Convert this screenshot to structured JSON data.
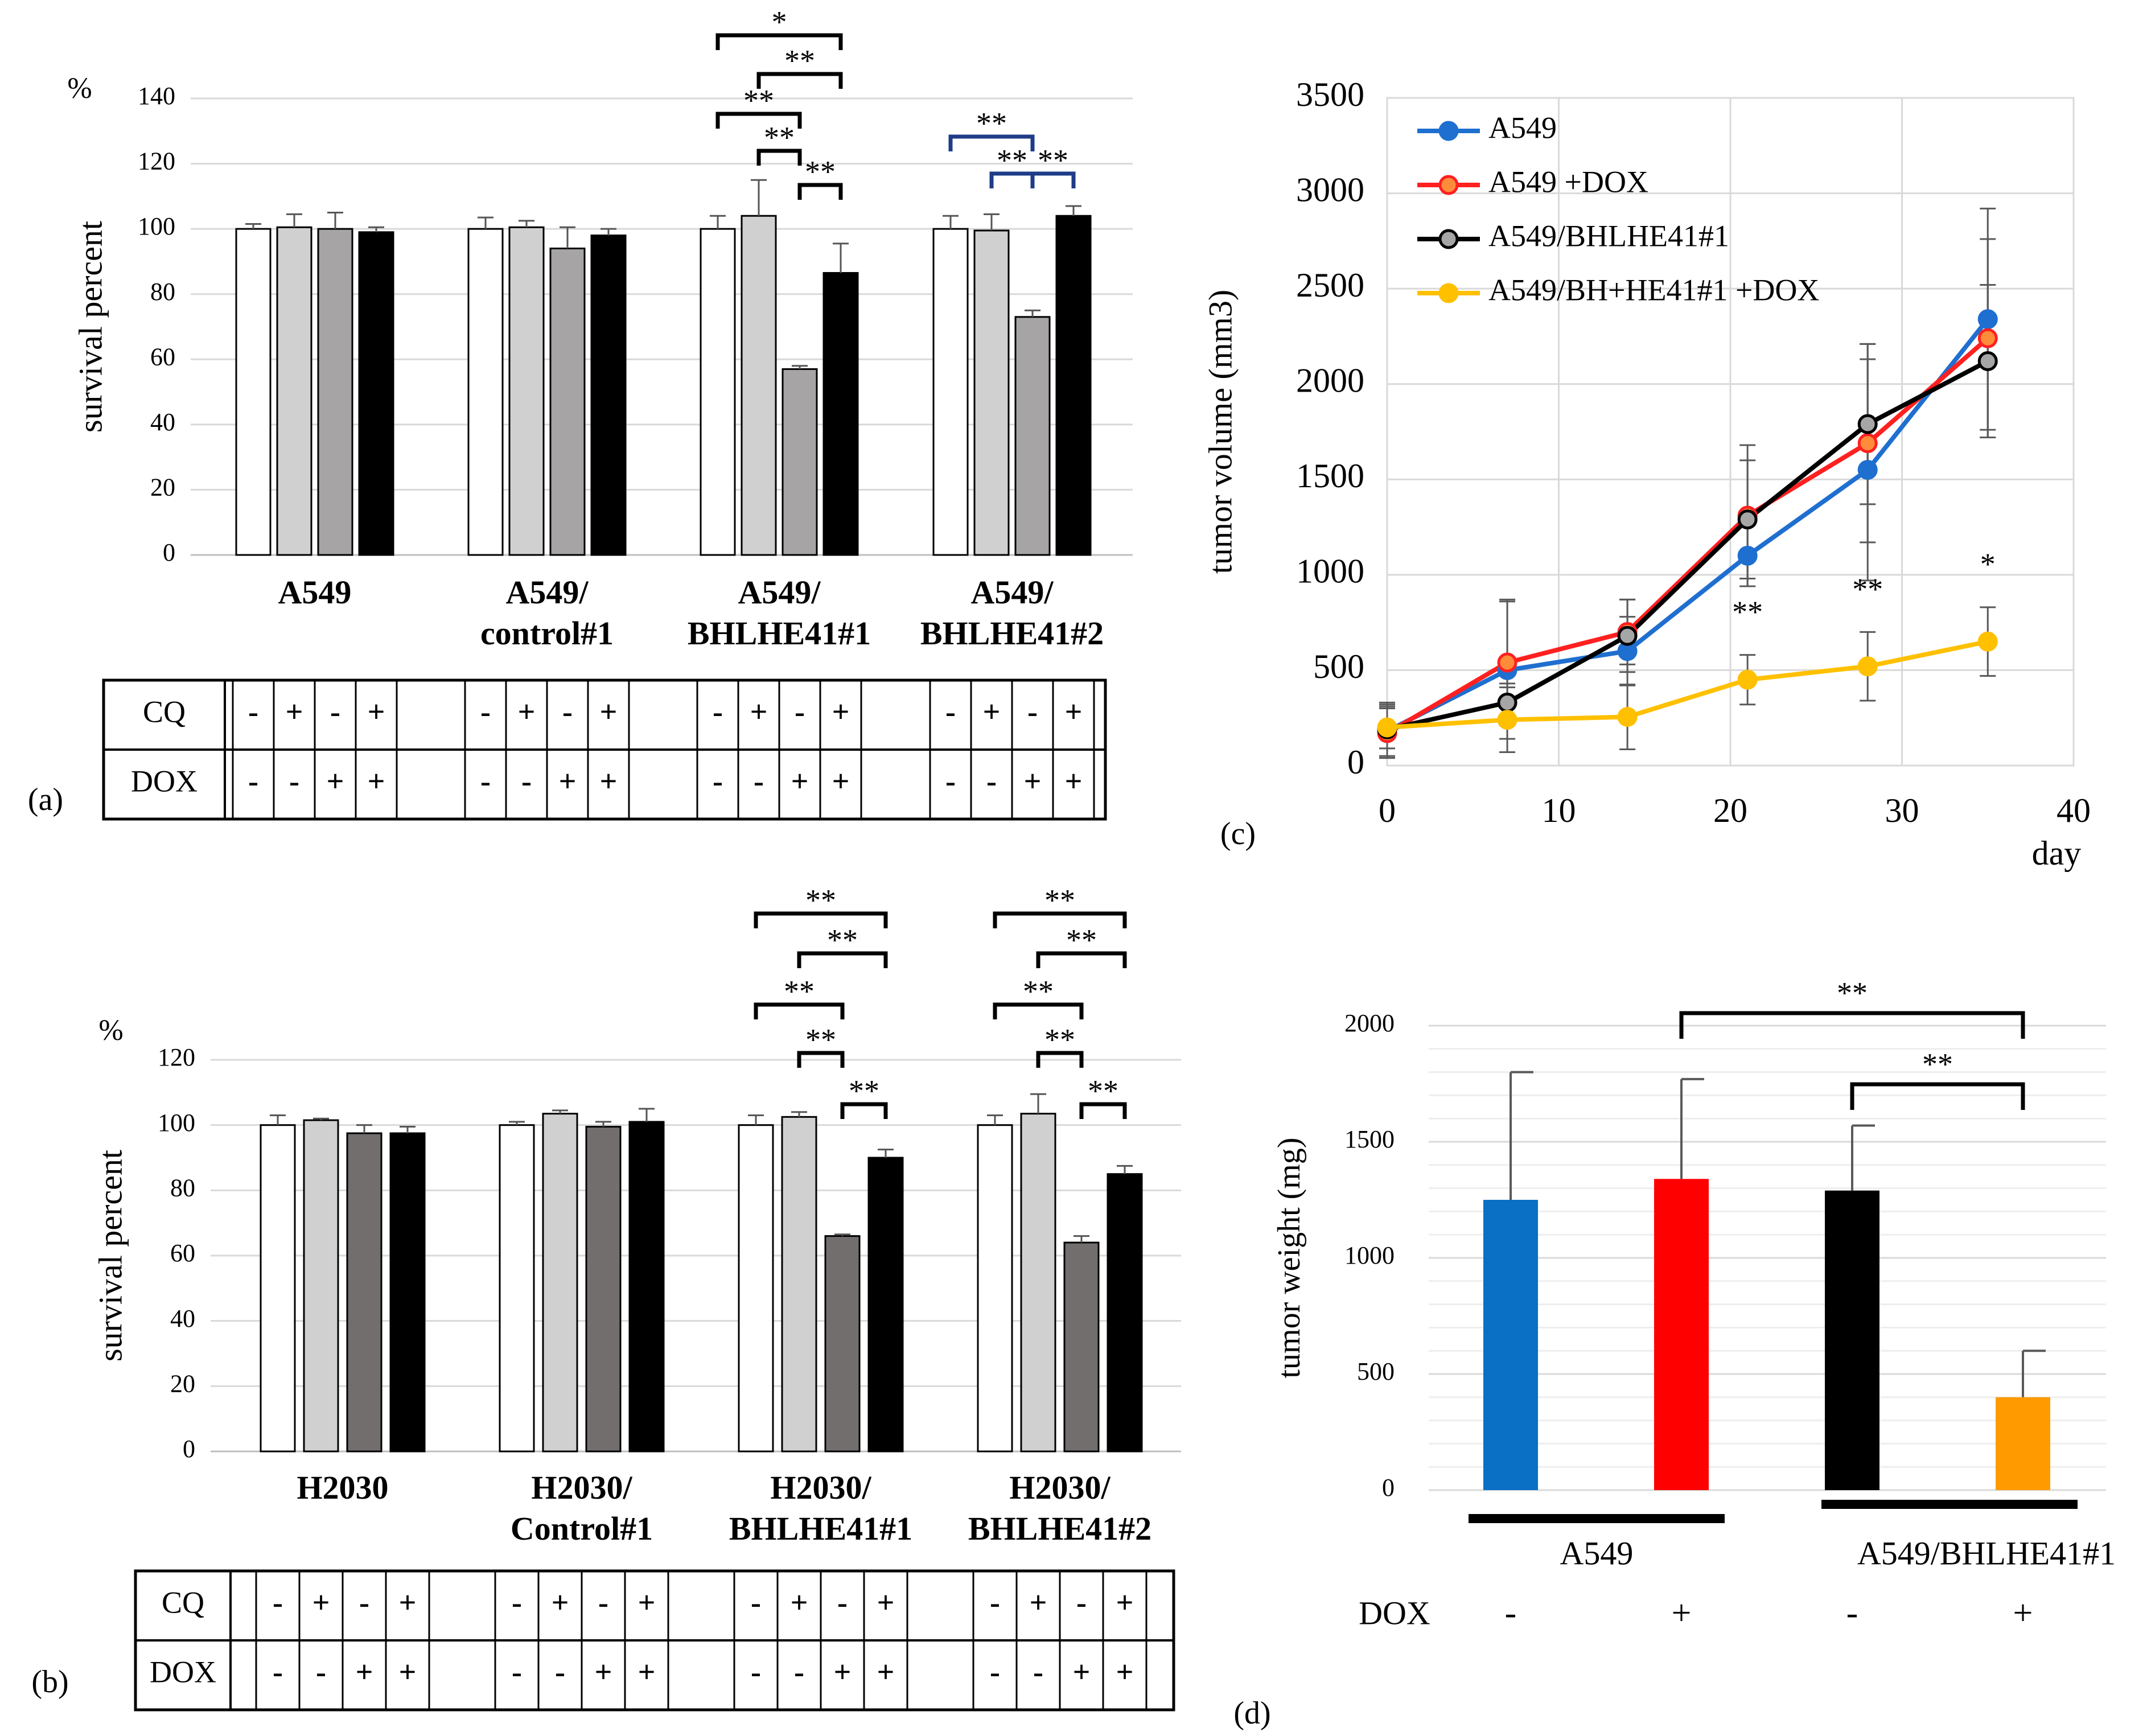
{
  "chart_data": [
    {
      "type": "bar",
      "panel": "(a)",
      "ylabel": "survival percent",
      "yunit": "%",
      "ylim": [
        0,
        140
      ],
      "yticks": [
        "0",
        "20",
        "40",
        "60",
        "80",
        "100",
        "120",
        "140"
      ],
      "grid": true,
      "groups": [
        "A549",
        "A549/\ncontrol#1",
        "A549/\nBHLHE41#1",
        "A549/\nBHLHE41#2"
      ],
      "series": [
        {
          "name": "CQ- DOX-",
          "color": "#ffffff",
          "values": [
            100,
            100,
            100,
            100
          ],
          "errors": [
            1.5,
            3.5,
            4,
            4
          ]
        },
        {
          "name": "CQ+ DOX-",
          "color": "#d0d0d0",
          "values": [
            100.5,
            100.5,
            104,
            99.5
          ],
          "errors": [
            4,
            2,
            11,
            5
          ]
        },
        {
          "name": "CQ- DOX+",
          "color": "#a6a4a4",
          "values": [
            100,
            94,
            57,
            73
          ],
          "errors": [
            5,
            6.5,
            1,
            2
          ]
        },
        {
          "name": "CQ+ DOX+",
          "color": "#000000",
          "values": [
            99,
            98,
            86.5,
            104
          ],
          "errors": [
            1.5,
            2,
            9,
            3
          ]
        }
      ],
      "table": {
        "rows": [
          {
            "label": "CQ",
            "marks": [
              "-",
              "+",
              "-",
              "+",
              "-",
              "+",
              "-",
              "+",
              "-",
              "+",
              "-",
              "+",
              "-",
              "+",
              "-",
              "+"
            ]
          },
          {
            "label": "DOX",
            "marks": [
              "-",
              "-",
              "+",
              "+",
              "-",
              "-",
              "+",
              "+",
              "-",
              "-",
              "+",
              "+",
              "-",
              "-",
              "+",
              "+"
            ]
          }
        ]
      },
      "brackets": [
        {
          "group": 2,
          "from": 0,
          "to": 3,
          "label": "*"
        },
        {
          "group": 2,
          "from": 1,
          "to": 3,
          "label": "**"
        },
        {
          "group": 2,
          "from": 0,
          "to": 2,
          "label": "**"
        },
        {
          "group": 2,
          "from": 1,
          "to": 2,
          "label": "**"
        },
        {
          "group": 2,
          "from": 2,
          "to": 3,
          "label": "**"
        },
        {
          "group": 3,
          "from": 0,
          "to": 2,
          "label": "**",
          "color": "#1f3c88"
        },
        {
          "group": 3,
          "from": 1,
          "to": 2,
          "label": "**",
          "color": "#1f3c88"
        },
        {
          "group": 3,
          "from": 2,
          "to": 3,
          "label": "**",
          "color": "#1f3c88"
        }
      ]
    },
    {
      "type": "bar",
      "panel": "(b)",
      "ylabel": "survival percent",
      "yunit": "%",
      "ylim": [
        0,
        120
      ],
      "yticks": [
        "0",
        "20",
        "40",
        "60",
        "80",
        "100",
        "120"
      ],
      "grid": true,
      "groups": [
        "H2030",
        "H2030/\nControl#1",
        "H2030/\nBHLHE41#1",
        "H2030/\nBHLHE41#2"
      ],
      "series": [
        {
          "name": "CQ- DOX-",
          "color": "#ffffff",
          "values": [
            100,
            100,
            100,
            100
          ],
          "errors": [
            3,
            1,
            3,
            3
          ]
        },
        {
          "name": "CQ+ DOX-",
          "color": "#d0d0d0",
          "values": [
            101.5,
            103.5,
            102.5,
            103.5
          ],
          "errors": [
            0.5,
            1,
            1.5,
            6
          ]
        },
        {
          "name": "CQ- DOX+",
          "color": "#726e6e",
          "values": [
            97.5,
            99.5,
            66,
            64
          ],
          "errors": [
            2.5,
            1.5,
            0.5,
            2
          ]
        },
        {
          "name": "CQ+ DOX+",
          "color": "#000000",
          "values": [
            97.5,
            101,
            90,
            85
          ],
          "errors": [
            2,
            4,
            2.5,
            2.5
          ]
        }
      ],
      "table": {
        "rows": [
          {
            "label": "CQ",
            "marks": [
              "-",
              "+",
              "-",
              "+",
              "-",
              "+",
              "-",
              "+",
              "-",
              "+",
              "-",
              "+",
              "-",
              "+",
              "-",
              "+"
            ]
          },
          {
            "label": "DOX",
            "marks": [
              "-",
              "-",
              "+",
              "+",
              "-",
              "-",
              "+",
              "+",
              "-",
              "-",
              "+",
              "+",
              "-",
              "-",
              "+",
              "+"
            ]
          }
        ]
      },
      "brackets": [
        {
          "group": 2,
          "from": 0,
          "to": 3,
          "label": "**"
        },
        {
          "group": 2,
          "from": 1,
          "to": 3,
          "label": "**"
        },
        {
          "group": 2,
          "from": 0,
          "to": 2,
          "label": "**"
        },
        {
          "group": 2,
          "from": 1,
          "to": 2,
          "label": "**"
        },
        {
          "group": 2,
          "from": 2,
          "to": 3,
          "label": "**"
        },
        {
          "group": 3,
          "from": 0,
          "to": 3,
          "label": "**"
        },
        {
          "group": 3,
          "from": 1,
          "to": 3,
          "label": "**"
        },
        {
          "group": 3,
          "from": 0,
          "to": 2,
          "label": "**"
        },
        {
          "group": 3,
          "from": 1,
          "to": 2,
          "label": "**"
        },
        {
          "group": 3,
          "from": 2,
          "to": 3,
          "label": "**"
        }
      ]
    },
    {
      "type": "line",
      "panel": "(c)",
      "ylabel": "tumor volume (mm3)",
      "xlabel": "day",
      "xlim": [
        0,
        40
      ],
      "ylim": [
        0,
        3500
      ],
      "xticks": [
        "0",
        "10",
        "20",
        "30",
        "40"
      ],
      "yticks": [
        "0",
        "500",
        "1000",
        "1500",
        "2000",
        "2500",
        "3000",
        "3500"
      ],
      "grid": true,
      "legend": "top-left",
      "x": [
        0,
        7,
        14,
        21,
        28,
        35
      ],
      "series": [
        {
          "name": "A549",
          "color": "#1f6fd0",
          "values": [
            180,
            500,
            600,
            1100,
            1550,
            2340
          ],
          "errors": [
            140,
            360,
            180,
            160,
            580,
            580
          ]
        },
        {
          "name": "A549 +DOX",
          "color": "#ff2020",
          "values": [
            170,
            540,
            700,
            1310,
            1690,
            2240
          ],
          "errors": [
            130,
            330,
            170,
            370,
            520,
            520
          ]
        },
        {
          "name": "A549/BHLHE41#1",
          "color": "#000000",
          "values": [
            190,
            330,
            680,
            1290,
            1790,
            2120
          ],
          "errors": [
            140,
            100,
            190,
            310,
            420,
            400
          ]
        },
        {
          "name": "A549/BH+HE41#1 +DOX",
          "color": "#ffc000",
          "values": [
            200,
            240,
            255,
            450,
            520,
            650
          ],
          "errors": [
            110,
            170,
            170,
            130,
            180,
            180
          ]
        }
      ],
      "annotations": [
        {
          "x": 21,
          "label": "**"
        },
        {
          "x": 28,
          "label": "**"
        },
        {
          "x": 35,
          "label": "*"
        }
      ]
    },
    {
      "type": "bar",
      "panel": "(d)",
      "ylabel": "tumor weight (mg)",
      "ylim": [
        0,
        2000
      ],
      "yticks": [
        "0",
        "500",
        "1000",
        "1500",
        "2000"
      ],
      "grid": true,
      "groups": [
        "A549",
        "A549/BHLHE41#1"
      ],
      "dox_label": "DOX",
      "dox_marks": [
        "-",
        "+",
        "-",
        "+"
      ],
      "bars": [
        {
          "value": 1250,
          "error": 550,
          "color": "#0a70c6"
        },
        {
          "value": 1340,
          "error": 430,
          "color": "#ff0000"
        },
        {
          "value": 1290,
          "error": 280,
          "color": "#000000"
        },
        {
          "value": 400,
          "error": 200,
          "color": "#ff9b00"
        }
      ],
      "brackets": [
        {
          "from": 1,
          "to": 3,
          "label": "**"
        },
        {
          "from": 2,
          "to": 3,
          "label": "**"
        }
      ]
    }
  ]
}
